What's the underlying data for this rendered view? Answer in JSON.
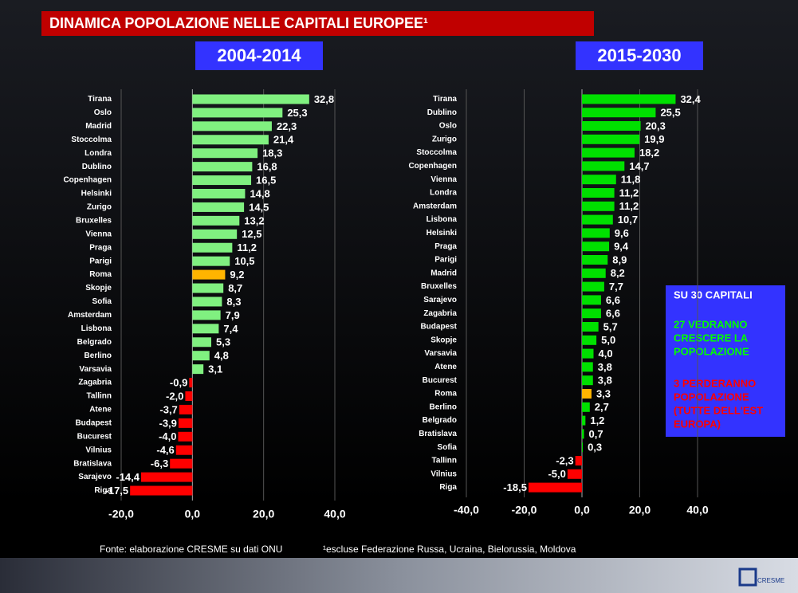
{
  "title": "DINAMICA POPOLAZIONE NELLE CAPITALI EUROPEE¹",
  "chart_data": [
    {
      "type": "bar",
      "orientation": "horizontal",
      "title": "2004-2014",
      "categories": [
        "Tirana",
        "Oslo",
        "Madrid",
        "Stoccolma",
        "Londra",
        "Dublino",
        "Copenhagen",
        "Helsinki",
        "Zurigo",
        "Bruxelles",
        "Vienna",
        "Praga",
        "Parigi",
        "Roma",
        "Skopje",
        "Sofia",
        "Amsterdam",
        "Lisbona",
        "Belgrado",
        "Berlino",
        "Varsavia",
        "Zagabria",
        "Tallinn",
        "Atene",
        "Budapest",
        "Bucurest",
        "Vilnius",
        "Bratislava",
        "Sarajevo",
        "Riga"
      ],
      "values": [
        32.8,
        25.3,
        22.3,
        21.4,
        18.3,
        16.8,
        16.5,
        14.8,
        14.5,
        13.2,
        12.5,
        11.2,
        10.5,
        9.2,
        8.7,
        8.3,
        7.9,
        7.4,
        5.3,
        4.8,
        3.1,
        -0.9,
        -2.0,
        -3.7,
        -3.9,
        -4.0,
        -4.6,
        -6.3,
        -14.4,
        -17.5
      ],
      "value_labels": [
        "32,8",
        "25,3",
        "22,3",
        "21,4",
        "18,3",
        "16,8",
        "16,5",
        "14,8",
        "14,5",
        "13,2",
        "12,5",
        "11,2",
        "10,5",
        "9,2",
        "8,7",
        "8,3",
        "7,9",
        "7,4",
        "5,3",
        "4,8",
        "3,1",
        "-0,9",
        "-2,0",
        "-3,7",
        "-3,9",
        "-4,0",
        "-4,6",
        "-6,3",
        "-14,4",
        "-17,5"
      ],
      "colors": [
        "#80f080",
        "#80f080",
        "#80f080",
        "#80f080",
        "#80f080",
        "#80f080",
        "#80f080",
        "#80f080",
        "#80f080",
        "#80f080",
        "#80f080",
        "#80f080",
        "#80f080",
        "#ffb400",
        "#80f080",
        "#80f080",
        "#80f080",
        "#80f080",
        "#80f080",
        "#80f080",
        "#80f080",
        "#ff0000",
        "#ff0000",
        "#ff0000",
        "#ff0000",
        "#ff0000",
        "#ff0000",
        "#ff0000",
        "#ff0000",
        "#ff0000"
      ],
      "xlim": [
        -20,
        40
      ],
      "xticks": [
        {
          "value": -20,
          "label": "-20,0"
        },
        {
          "value": 0,
          "label": "0,0"
        },
        {
          "value": 20,
          "label": "20,0"
        },
        {
          "value": 40,
          "label": "40,0"
        }
      ],
      "grid": true
    },
    {
      "type": "bar",
      "orientation": "horizontal",
      "title": "2015-2030",
      "categories": [
        "Tirana",
        "Dublino",
        "Oslo",
        "Zurigo",
        "Stoccolma",
        "Copenhagen",
        "Vienna",
        "Londra",
        "Amsterdam",
        "Lisbona",
        "Helsinki",
        "Praga",
        "Parigi",
        "Madrid",
        "Bruxelles",
        "Sarajevo",
        "Zagabria",
        "Budapest",
        "Skopje",
        "Varsavia",
        "Atene",
        "Bucurest",
        "Roma",
        "Berlino",
        "Belgrado",
        "Bratislava",
        "Sofia",
        "Tallinn",
        "Vilnius",
        "Riga"
      ],
      "values": [
        32.4,
        25.5,
        20.3,
        19.9,
        18.2,
        14.7,
        11.8,
        11.2,
        11.2,
        10.7,
        9.6,
        9.4,
        8.9,
        8.2,
        7.7,
        6.6,
        6.6,
        5.7,
        5.0,
        4.0,
        3.8,
        3.8,
        3.3,
        2.7,
        1.2,
        0.7,
        0.3,
        -2.3,
        -5.0,
        -18.5
      ],
      "value_labels": [
        "32,4",
        "25,5",
        "20,3",
        "19,9",
        "18,2",
        "14,7",
        "11,8",
        "11,2",
        "11,2",
        "10,7",
        "9,6",
        "9,4",
        "8,9",
        "8,2",
        "7,7",
        "6,6",
        "6,6",
        "5,7",
        "5,0",
        "4,0",
        "3,8",
        "3,8",
        "3,3",
        "2,7",
        "1,2",
        "0,7",
        "0,3",
        "-2,3",
        "-5,0",
        "-18,5"
      ],
      "colors": [
        "#00e000",
        "#00e000",
        "#00e000",
        "#00e000",
        "#00e000",
        "#00e000",
        "#00e000",
        "#00e000",
        "#00e000",
        "#00e000",
        "#00e000",
        "#00e000",
        "#00e000",
        "#00e000",
        "#00e000",
        "#00e000",
        "#00e000",
        "#00e000",
        "#00e000",
        "#00e000",
        "#00e000",
        "#00e000",
        "#ffb400",
        "#00e000",
        "#00e000",
        "#00e000",
        "#00e000",
        "#ff0000",
        "#ff0000",
        "#ff0000"
      ],
      "xlim": [
        -40,
        40
      ],
      "xticks": [
        {
          "value": -40,
          "label": "-40,0"
        },
        {
          "value": -20,
          "label": "-20,0"
        },
        {
          "value": 0,
          "label": "0,0"
        },
        {
          "value": 20,
          "label": "20,0"
        },
        {
          "value": 40,
          "label": "40,0"
        }
      ],
      "grid": true
    }
  ],
  "note": {
    "heading": "SU 30 CAPITALI",
    "growth": [
      "27 VEDRANNO",
      " CRESCERE LA",
      "POPOLAZIONE"
    ],
    "decline": [
      "3 PERDERANNO",
      "POPOLAZIONE",
      "(TUTTE DELL'EST",
      "EUROPA)"
    ]
  },
  "source": "Fonte:  elaborazione CRESME  su dati ONU",
  "footnote": "¹escluse Federazione Russa, Ucraina, Bielorussia, Moldova",
  "logo": "CRESME"
}
